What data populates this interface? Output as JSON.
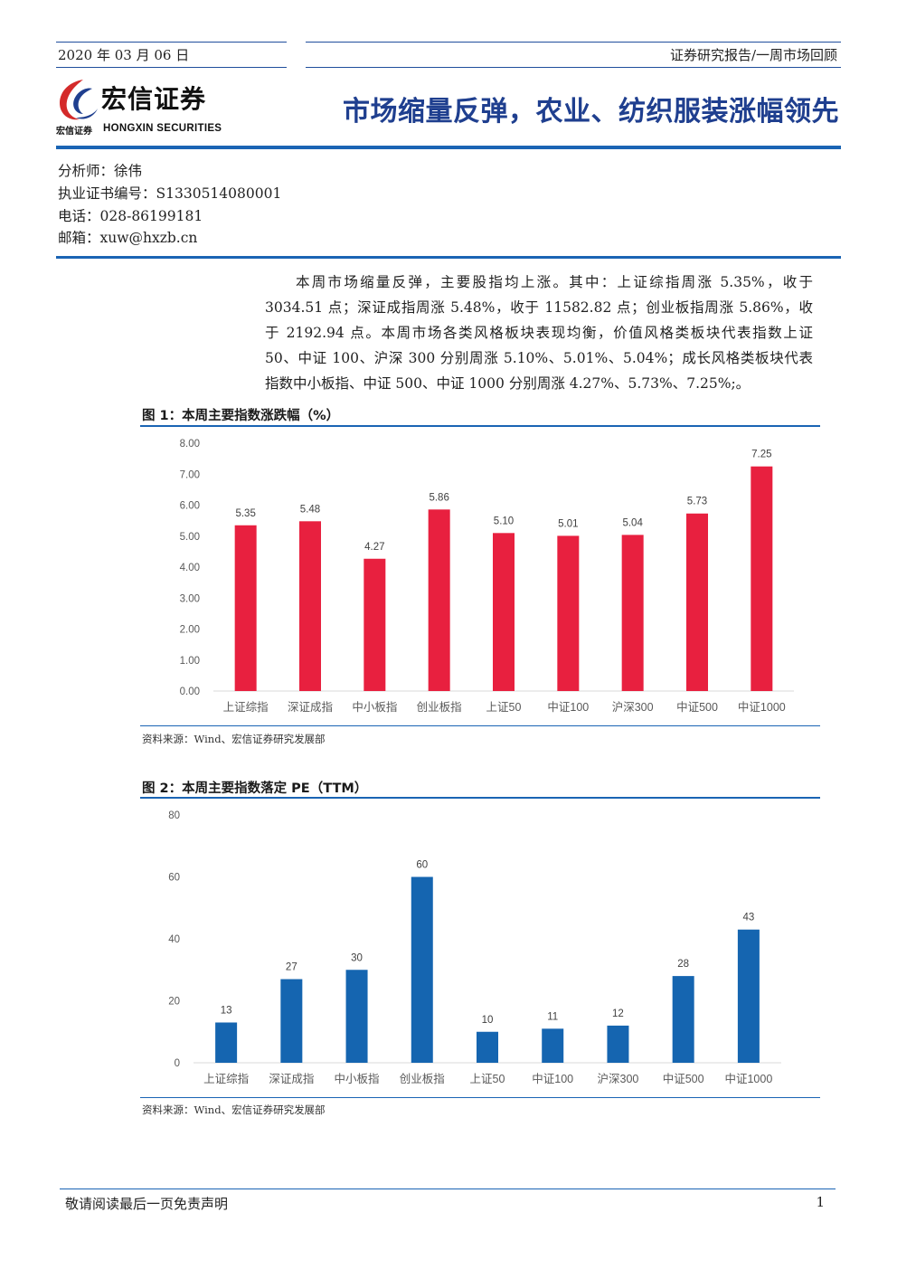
{
  "header": {
    "date": "2020 年 03 月 06 日",
    "report_type": "证券研究报告/一周市场回顾"
  },
  "logo": {
    "name_cn": "宏信证券",
    "small_cn": "宏信证券",
    "name_en": "HONGXIN SECURITIES"
  },
  "title": "市场缩量反弹，农业、纺织服装涨幅领先",
  "analyst": {
    "name": "分析师：徐伟",
    "license": "执业证书编号：S1330514080001",
    "phone": "电话：028-86199181",
    "email": "邮箱：xuw@hxzb.cn"
  },
  "summary_lines": [
    "本周市场缩量反弹，主要股指均上涨。其中：上证综指周涨 5.35%，收于",
    "3034.51 点；深证成指周涨 5.48%，收于 11582.82 点；创业板指周涨 5.86%，收",
    "于 2192.94 点。本周市场各类风格板块表现均衡，价值风格类板块代表指数上证",
    "50、中证 100、沪深 300 分别周涨 5.10%、5.01%、5.04%；成长风格类板块代表",
    "指数中小板指、中证 500、中证 1000 分别周涨 4.27%、5.73%、7.25%;。"
  ],
  "figures": [
    {
      "caption": "图 1：本周主要指数涨跌幅（%）",
      "source": "资料来源：Wind、宏信证券研究发展部"
    },
    {
      "caption": "图 2：本周主要指数落定 PE（TTM）",
      "source": "资料来源：Wind、宏信证券研究发展部"
    }
  ],
  "chart_data": [
    {
      "type": "bar",
      "categories": [
        "上证综指",
        "深证成指",
        "中小板指",
        "创业板指",
        "上证50",
        "中证100",
        "沪深300",
        "中证500",
        "中证1000"
      ],
      "values": [
        5.35,
        5.48,
        4.27,
        5.86,
        5.1,
        5.01,
        5.04,
        5.73,
        7.25
      ],
      "value_labels": [
        "5.35",
        "5.48",
        "4.27",
        "5.86",
        "5.10",
        "5.01",
        "5.04",
        "5.73",
        "7.25"
      ],
      "ylim": [
        0,
        8
      ],
      "yticks": [
        "0.00",
        "1.00",
        "2.00",
        "3.00",
        "4.00",
        "5.00",
        "6.00",
        "7.00",
        "8.00"
      ],
      "color": "#e8203f",
      "grid": false,
      "legend": false
    },
    {
      "type": "bar",
      "categories": [
        "上证综指",
        "深证成指",
        "中小板指",
        "创业板指",
        "上证50",
        "中证100",
        "沪深300",
        "中证500",
        "中证1000"
      ],
      "values": [
        13,
        27,
        30,
        60,
        10,
        11,
        12,
        28,
        43
      ],
      "value_labels": [
        "13",
        "27",
        "30",
        "60",
        "10",
        "11",
        "12",
        "28",
        "43"
      ],
      "ylim": [
        0,
        80
      ],
      "yticks": [
        "0",
        "20",
        "40",
        "60",
        "80"
      ],
      "color": "#1565b0",
      "grid": false,
      "legend": false
    }
  ],
  "footer": {
    "disclaimer": "敬请阅读最后一页免责声明",
    "page": "1"
  }
}
